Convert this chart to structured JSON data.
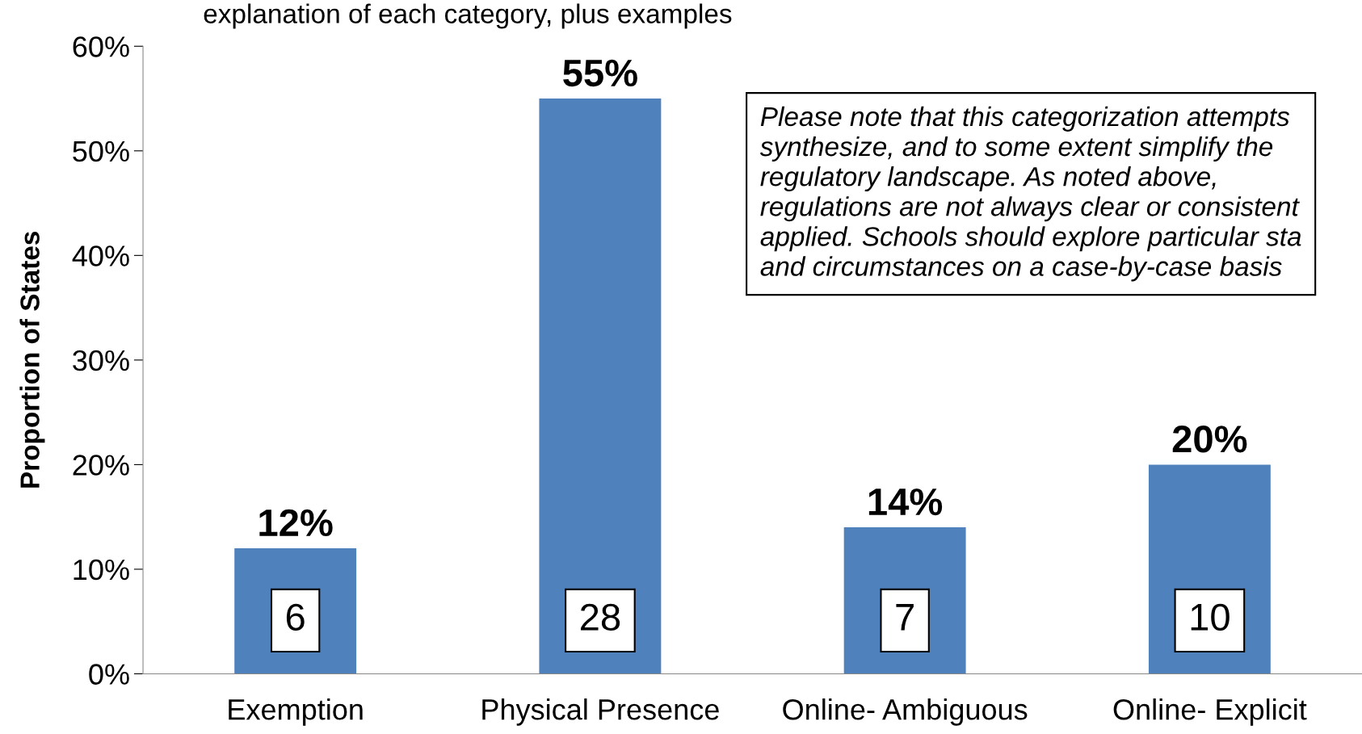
{
  "chart_data": {
    "type": "bar",
    "ylabel": "Proportion of States",
    "categories": [
      "Exemption",
      "Physical Presence",
      "Online- Ambiguous",
      "Online- Explicit"
    ],
    "values": [
      12,
      55,
      14,
      20
    ],
    "color": "#4f81bd",
    "value_labels": [
      "12%",
      "55%",
      "14%",
      "20%"
    ],
    "ylim": [
      0,
      60
    ],
    "yticks": [
      {
        "value": 0,
        "label": "0%"
      },
      {
        "value": 10,
        "label": "10%"
      },
      {
        "value": 20,
        "label": "20%"
      },
      {
        "value": 30,
        "label": "30%"
      },
      {
        "value": 40,
        "label": "40%"
      },
      {
        "value": 50,
        "label": "50%"
      },
      {
        "value": 60,
        "label": "60%"
      }
    ],
    "grid": false,
    "legend": false,
    "annotations": [
      "explanation of each category, plus examples",
      "Please note that this categorization attempts\nsynthesize, and to some extent simplify the\nregulatory landscape. As noted above,\nregulations are not always clear or consistent\napplied. Schools should explore particular sta\nand circumstances on a case-by-case basis",
      "6",
      "28",
      "7",
      "10"
    ]
  }
}
